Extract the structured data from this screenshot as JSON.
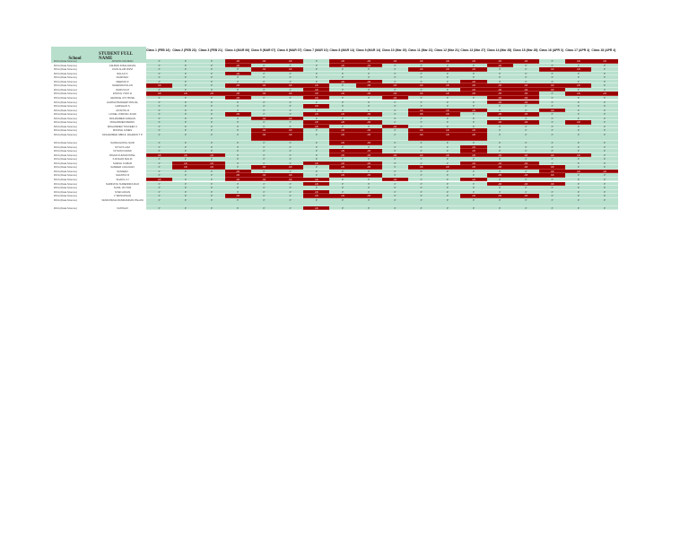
{
  "headers": {
    "school": "School",
    "name": "STUDENT FULL NAME"
  },
  "classes": [
    "Class 1 (FEB 16)",
    "Class 2 (FEB 23)",
    "Class 3 (FEB 21)",
    "Class 4 (MAR 06)",
    "Class 5 (MAR 07)",
    "Class 6 (MAR 07)",
    "Class 7 (MAR 10)",
    "Class 8 (MAR 14)",
    "Class 9 (MAR 14)",
    "Class 10 (Mar 20)",
    "Class 11 (Mar 21)",
    "Class 12 (Mar 21)",
    "Class 13 (Mar 27)",
    "Class 14 (Mar 28)",
    "Class 15 (Mar 28)",
    "Class 16 (APR 3)",
    "Class 17 (APR 4)",
    "Class 18 (APR 4)"
  ],
  "colors": {
    "present": "#b8e0cd",
    "absent": "#990000",
    "header": "#b8dfcc"
  },
  "rows": [
    {
      "school": "RICA (Data Science)",
      "name": "ADVAITH RAJESH",
      "att": [
        "P",
        "P",
        "P",
        "AB",
        "AB",
        "AB",
        "P",
        "AB",
        "AB",
        "AB",
        "AB",
        "AB",
        "AB",
        "AB",
        "AB",
        "P",
        "AB",
        "AB"
      ]
    },
    {
      "school": "RICA (Data Science)",
      "name": "ASHWIN R BALAKDAS",
      "att": [
        "P",
        "P",
        "P",
        "AB",
        "P",
        "P",
        "P",
        "AB",
        "AB",
        "P",
        "P",
        "P",
        "P",
        "AB",
        "P",
        "P",
        "P",
        "P"
      ]
    },
    {
      "school": "RICA (Data Science)",
      "name": "AYAN ALAM RIZVI",
      "att": [
        "P",
        "P",
        "P",
        "P",
        "AB",
        "AB",
        "P",
        "P",
        "P",
        "P",
        "AB",
        "AB",
        "AB",
        "P",
        "P",
        "AB",
        "AB",
        "P"
      ]
    },
    {
      "school": "RICA (Data Science)",
      "name": "BALAJI K",
      "att": [
        "P",
        "P",
        "P",
        "AB",
        "P",
        "P",
        "P",
        "P",
        "P",
        "P",
        "P",
        "P",
        "P",
        "P",
        "P",
        "P",
        "P",
        "P"
      ]
    },
    {
      "school": "RICA (Data Science)",
      "name": "DHAKSHU",
      "att": [
        "P",
        "P",
        "P",
        "P",
        "P",
        "P",
        "P",
        "P",
        "P",
        "P",
        "P",
        "P",
        "P",
        "P",
        "P",
        "P",
        "P",
        "P"
      ]
    },
    {
      "school": "RICA (Data Science)",
      "name": "DEEPAK R",
      "att": [
        "P",
        "P",
        "P",
        "P",
        "P",
        "P",
        "P",
        "AB",
        "AB",
        "P",
        "P",
        "P",
        "AB",
        "P",
        "P",
        "P",
        "P",
        "P"
      ]
    },
    {
      "school": "RICA (Data Science)",
      "name": "DHEENDAYALAN",
      "att": [
        "AB",
        "P",
        "P",
        "AB",
        "AB",
        "AB",
        "AB",
        "P",
        "AB",
        "AB",
        "AB",
        "AB",
        "AB",
        "AB",
        "AB",
        "AB",
        "AB",
        "P"
      ]
    },
    {
      "school": "RICA (Data Science)",
      "name": "DHRUVA M",
      "att": [
        "P",
        "P",
        "P",
        "P",
        "P",
        "P",
        "AB",
        "P",
        "P",
        "P",
        "P",
        "P",
        "AB",
        "AB",
        "AB",
        "AB",
        "P",
        "P"
      ]
    },
    {
      "school": "RICA (Data Science)",
      "name": "ENOCH VIJAY E",
      "att": [
        "AB",
        "AB",
        "AB",
        "AB",
        "AB",
        "AB",
        "AB",
        "AB",
        "AB",
        "AB",
        "AB",
        "AB",
        "AB",
        "AB",
        "AB",
        "P",
        "AB",
        "AB"
      ]
    },
    {
      "school": "RICA (Data Science)",
      "name": "GEORGE JOY BOSE",
      "att": [
        "P",
        "P",
        "P",
        "AB",
        "P",
        "P",
        "AB",
        "P",
        "P",
        "AB",
        "P",
        "P",
        "P",
        "AB",
        "AB",
        "P",
        "P",
        "P"
      ]
    },
    {
      "school": "RICA (Data Science)",
      "name": "HARSH PRADEEP PANJAL",
      "att": [
        "P",
        "P",
        "P",
        "P",
        "P",
        "P",
        "P",
        "P",
        "P",
        "P",
        "P",
        "P",
        "P",
        "AB",
        "AB",
        "P",
        "P",
        "P"
      ]
    },
    {
      "school": "RICA (Data Science)",
      "name": "HARSHAN S",
      "att": [
        "P",
        "P",
        "P",
        "P",
        "P",
        "P",
        "AB",
        "P",
        "P",
        "P",
        "P",
        "P",
        "P",
        "P",
        "P",
        "P",
        "P",
        "P"
      ]
    },
    {
      "school": "RICA (Data Science)",
      "name": "JAYANTH R",
      "att": [
        "P",
        "P",
        "P",
        "P",
        "P",
        "P",
        "P",
        "P",
        "P",
        "P",
        "AB",
        "AB",
        "AB",
        "P",
        "P",
        "AB",
        "P",
        "P"
      ]
    },
    {
      "school": "RICA (Data Science)",
      "name": "LIONEL JORDAN JOHN",
      "att": [
        "P",
        "P",
        "P",
        "AB",
        "P",
        "P",
        "AB",
        "AB",
        "AB",
        "P",
        "AB",
        "AB",
        "P",
        "AB",
        "AB",
        "P",
        "P",
        "P"
      ]
    },
    {
      "school": "RICA (Data Science)",
      "name": "MOHAMMED FARHAN",
      "att": [
        "P",
        "P",
        "P",
        "P",
        "AB",
        "AB",
        "P",
        "P",
        "P",
        "P",
        "P",
        "P",
        "P",
        "P",
        "P",
        "P",
        "P",
        "P"
      ]
    },
    {
      "school": "RICA (Data Science)",
      "name": "MOHAMMED REDDU",
      "att": [
        "P",
        "P",
        "P",
        "P",
        "P",
        "P",
        "AB",
        "AB",
        "AB",
        "P",
        "P",
        "P",
        "P",
        "AB",
        "AB",
        "P",
        "AB",
        "P"
      ]
    },
    {
      "school": "RICA (Data Science)",
      "name": "MOHAMMED TOUFEEK C",
      "att": [
        "P",
        "P",
        "P",
        "P",
        "P",
        "P",
        "AB",
        "P",
        "P",
        "AB",
        "P",
        "P",
        "P",
        "P",
        "P",
        "P",
        "P",
        "P"
      ]
    },
    {
      "school": "RICA (Data Science)",
      "name": "MONISH JAMES",
      "att": [
        "P",
        "P",
        "P",
        "P",
        "AB",
        "AB",
        "P",
        "AB",
        "AB",
        "P",
        "AB",
        "AB",
        "AB",
        "P",
        "P",
        "P",
        "P",
        "P"
      ]
    },
    {
      "school": "RICA (Data Science)",
      "name": "MOHAMMED ABDUL RAHMAN T P",
      "att": [
        "P",
        "P",
        "P",
        "P",
        "AB",
        "AB",
        "P",
        "AB",
        "AB",
        "P",
        "AB",
        "AB",
        "AB",
        "P",
        "P",
        "P",
        "P",
        "P"
      ]
    },
    {
      "school": "RICA (Data Science)",
      "name": "NANDAGOPAL NAIR",
      "att": [
        "P",
        "P",
        "P",
        "P",
        "P",
        "P",
        "P",
        "AB",
        "AB",
        "P",
        "P",
        "P",
        "P",
        "P",
        "P",
        "P",
        "P",
        "P"
      ]
    },
    {
      "school": "RICA (Data Science)",
      "name": "NITHYA LAM",
      "att": [
        "P",
        "P",
        "P",
        "P",
        "P",
        "P",
        "P",
        "P",
        "P",
        "P",
        "P",
        "P",
        "AB",
        "P",
        "P",
        "P",
        "P",
        "P"
      ]
    },
    {
      "school": "RICA (Data Science)",
      "name": "NITHIN KUMAR",
      "att": [
        "P",
        "P",
        "P",
        "P",
        "P",
        "P",
        "P",
        "AB",
        "AB",
        "P",
        "P",
        "P",
        "AB",
        "P",
        "P",
        "P",
        "P",
        "P"
      ]
    },
    {
      "school": "RICA (Data Science)",
      "name": "PAVAN KUMAR PATEL",
      "att": [
        "AB",
        "AB",
        "AB",
        "P",
        "P",
        "P",
        "P",
        "AB",
        "AB",
        "AB",
        "AB",
        "AB",
        "AB",
        "AB",
        "AB",
        "AB",
        "AB",
        "P"
      ]
    },
    {
      "school": "RICA (Data Science)",
      "name": "S ROHAN MALIK",
      "att": [
        "P",
        "P",
        "P",
        "P",
        "P",
        "P",
        "P",
        "P",
        "P",
        "P",
        "P",
        "P",
        "P",
        "P",
        "P",
        "P",
        "P",
        "P"
      ]
    },
    {
      "school": "RICA (Data Science)",
      "name": "SAIESH KUMAR",
      "att": [
        "P",
        "AB",
        "AB",
        "P",
        "P",
        "P",
        "AB",
        "AB",
        "AB",
        "P",
        "P",
        "P",
        "AB",
        "AB",
        "AB",
        "P",
        "P",
        "P"
      ]
    },
    {
      "school": "RICA (Data Science)",
      "name": "SAMEER CHAUHAN",
      "att": [
        "P",
        "AB",
        "AB",
        "P",
        "AB",
        "AB",
        "P",
        "AB",
        "AB",
        "P",
        "AB",
        "AB",
        "AB",
        "AB",
        "AB",
        "AB",
        "P",
        "P"
      ]
    },
    {
      "school": "RICA (Data Science)",
      "name": "SANJEEV",
      "att": [
        "P",
        "P",
        "P",
        "AB",
        "P",
        "P",
        "P",
        "P",
        "P",
        "P",
        "P",
        "P",
        "P",
        "P",
        "P",
        "AB",
        "AB",
        "AB"
      ]
    },
    {
      "school": "RICA (Data Science)",
      "name": "SHANTHI R",
      "att": [
        "P",
        "P",
        "P",
        "AB",
        "AB",
        "AB",
        "P",
        "AB",
        "AB",
        "P",
        "P",
        "P",
        "P",
        "AB",
        "AB",
        "AB",
        "P",
        "P"
      ]
    },
    {
      "school": "RICA (Data Science)",
      "name": "SHAKIL CJ",
      "att": [
        "AB",
        "P",
        "P",
        "AB",
        "AB",
        "AB",
        "AB",
        "P",
        "P",
        "AB",
        "P",
        "P",
        "AB",
        "P",
        "P",
        "P",
        "P",
        "P"
      ]
    },
    {
      "school": "RICA (Data Science)",
      "name": "SHRINATH SURENDRA RAO",
      "att": [
        "P",
        "P",
        "P",
        "P",
        "P",
        "P",
        "AB",
        "P",
        "P",
        "P",
        "P",
        "P",
        "P",
        "AB",
        "AB",
        "AB",
        "P",
        "P"
      ]
    },
    {
      "school": "RICA (Data Science)",
      "name": "SUNIL VICTOR",
      "att": [
        "P",
        "P",
        "P",
        "P",
        "P",
        "P",
        "P",
        "P",
        "P",
        "P",
        "P",
        "P",
        "P",
        "P",
        "P",
        "P",
        "P",
        "P"
      ]
    },
    {
      "school": "RICA (Data Science)",
      "name": "SYED AFFAN",
      "att": [
        "P",
        "P",
        "P",
        "P",
        "P",
        "P",
        "AB",
        "P",
        "P",
        "P",
        "P",
        "P",
        "P",
        "P",
        "P",
        "P",
        "P",
        "P"
      ]
    },
    {
      "school": "RICA (Data Science)",
      "name": "V SRINIVASAN",
      "att": [
        "P",
        "P",
        "P",
        "AB",
        "P",
        "P",
        "AB",
        "AB",
        "AB",
        "P",
        "P",
        "P",
        "AB",
        "AB",
        "AB",
        "P",
        "P",
        "P"
      ]
    },
    {
      "school": "RICA (Data Science)",
      "name": "VENKATESH MANIKANDAN PALANI",
      "att": [
        "P",
        "P",
        "P",
        "P",
        "P",
        "P",
        "P",
        "P",
        "P",
        "P",
        "P",
        "P",
        "P",
        "P",
        "P",
        "P",
        "P",
        "P"
      ]
    },
    {
      "school": "RICA (Data Science)",
      "name": "VASTHAV",
      "att": [
        "P",
        "P",
        "P",
        "P",
        "P",
        "P",
        "AB",
        "P",
        "P",
        "P",
        "P",
        "P",
        "P",
        "P",
        "P",
        "P",
        "P",
        "P"
      ]
    }
  ]
}
